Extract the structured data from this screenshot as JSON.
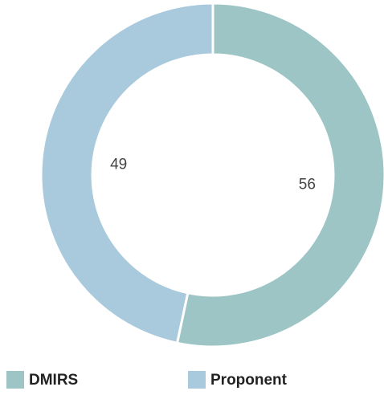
{
  "chart_data": {
    "type": "donut",
    "categories": [
      "DMIRS",
      "Proponent"
    ],
    "values": [
      56,
      49
    ],
    "colors": [
      "#9dc5c5",
      "#a9c9dc"
    ]
  }
}
